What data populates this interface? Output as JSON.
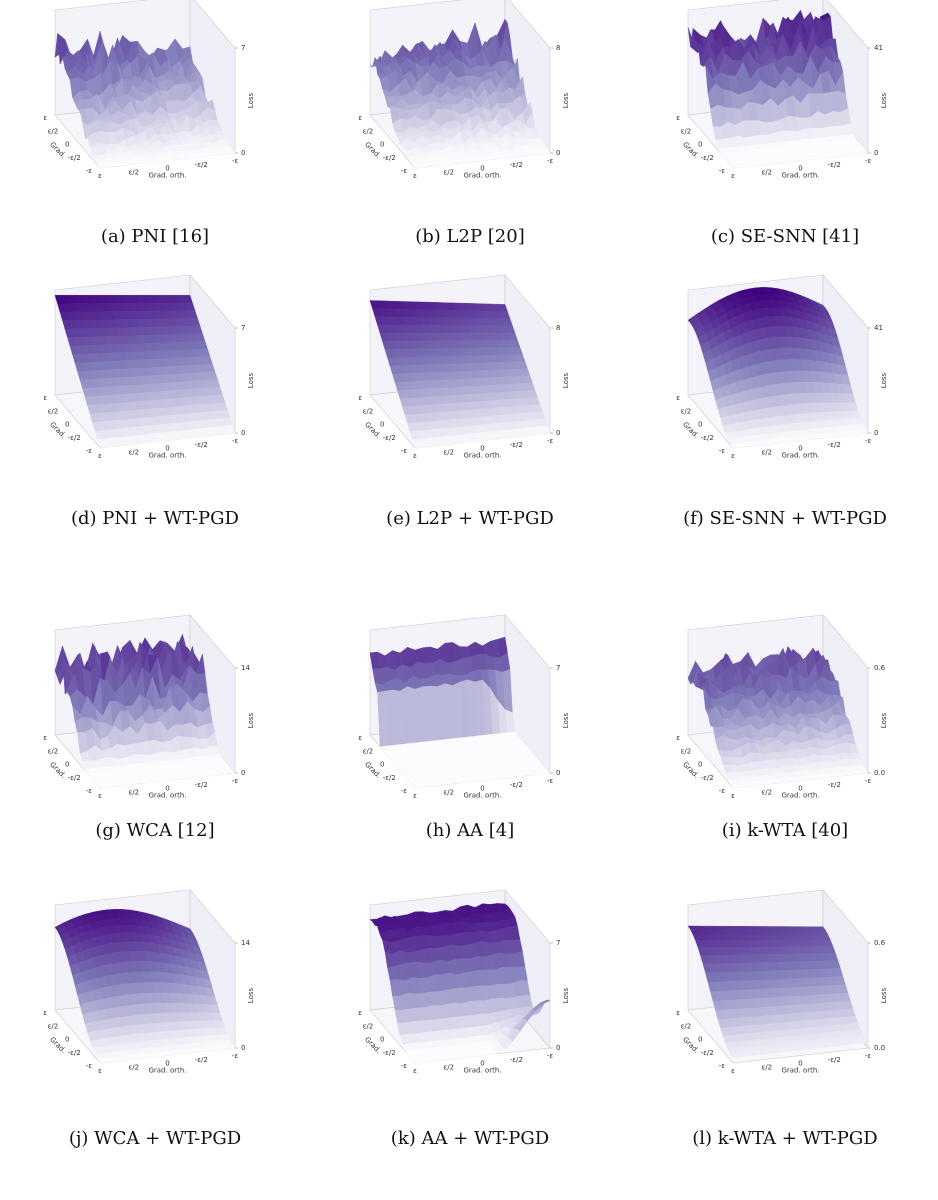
{
  "axes": {
    "ticks": [
      "ε",
      "ε/2",
      "0",
      "-ε/2",
      "-ε"
    ],
    "x_label": "Grad. orth.",
    "y_label": "Grad.",
    "z_label": "Loss"
  },
  "panels": [
    {
      "caption": "(a) PNI [16]",
      "zlim": [
        0,
        7
      ],
      "zticks": [
        0,
        7
      ]
    },
    {
      "caption": "(b) L2P [20]",
      "zlim": [
        0,
        8
      ],
      "zticks": [
        0,
        8
      ]
    },
    {
      "caption": "(c) SE-SNN [41]",
      "zlim": [
        0,
        41
      ],
      "zticks": [
        0,
        41
      ]
    },
    {
      "caption": "(d) PNI + WT-PGD",
      "zlim": [
        0,
        7
      ],
      "zticks": [
        0,
        7
      ]
    },
    {
      "caption": "(e) L2P + WT-PGD",
      "zlim": [
        0,
        8
      ],
      "zticks": [
        0,
        8
      ]
    },
    {
      "caption": "(f) SE-SNN + WT-PGD",
      "zlim": [
        0,
        41
      ],
      "zticks": [
        0,
        41
      ]
    },
    {
      "caption": "(g) WCA [12]",
      "zlim": [
        0,
        14
      ],
      "zticks": [
        0,
        14
      ]
    },
    {
      "caption": "(h) AA [4]",
      "zlim": [
        0,
        7
      ],
      "zticks": [
        0,
        7
      ]
    },
    {
      "caption": "(i) k-WTA [40]",
      "zlim": [
        0,
        0.6
      ],
      "zticks": [
        {
          "value": 0,
          "label": "0.0"
        },
        0.6
      ]
    },
    {
      "caption": "(j) WCA + WT-PGD",
      "zlim": [
        0,
        14
      ],
      "zticks": [
        0,
        14
      ]
    },
    {
      "caption": "(k) AA + WT-PGD",
      "zlim": [
        0,
        7
      ],
      "zticks": [
        0,
        7
      ]
    },
    {
      "caption": "(l) k-WTA + WT-PGD",
      "zlim": [
        0,
        0.6
      ],
      "zticks": [
        {
          "value": 0,
          "label": "0.0"
        },
        0.6
      ]
    }
  ]
}
